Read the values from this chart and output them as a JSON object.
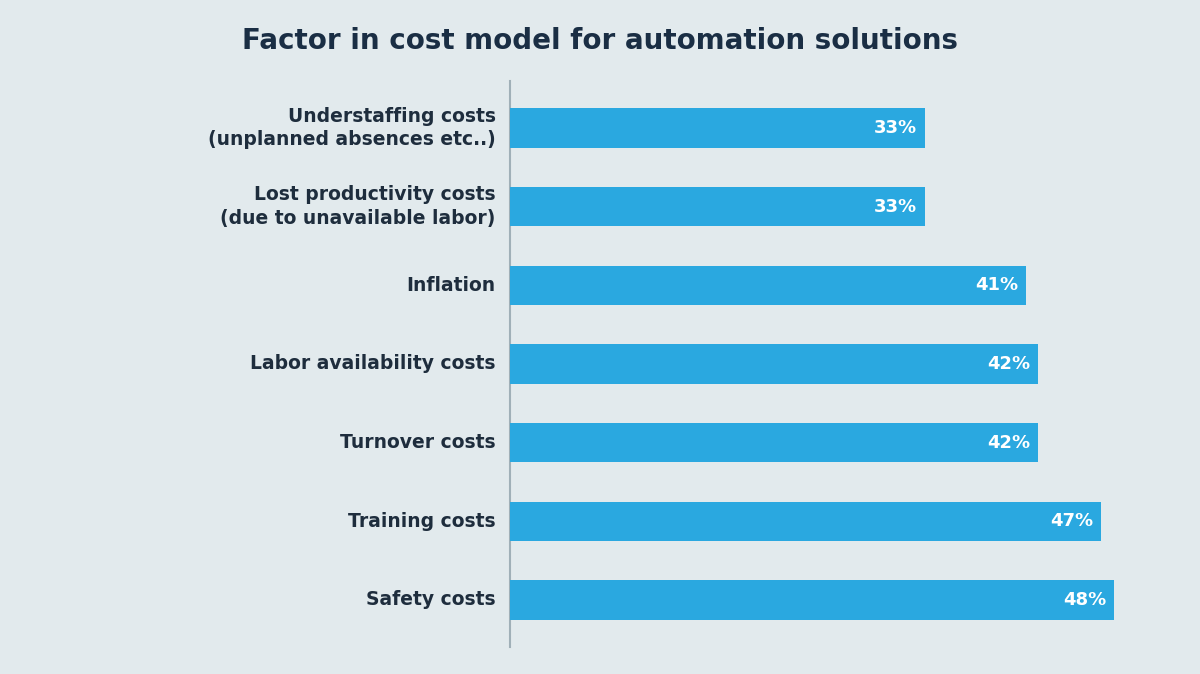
{
  "title": "Factor in cost model for automation solutions",
  "categories": [
    "Safety costs",
    "Training costs",
    "Turnover costs",
    "Labor availability costs",
    "Inflation",
    "Lost productivity costs\n(due to unavailable labor)",
    "Understaffing costs\n(unplanned absences etc..)"
  ],
  "values": [
    48,
    47,
    42,
    42,
    41,
    33,
    33
  ],
  "labels": [
    "48%",
    "47%",
    "42%",
    "42%",
    "41%",
    "33%",
    "33%"
  ],
  "bar_color": "#2aa8e0",
  "background_color": "#e2eaed",
  "title_color": "#1a2e44",
  "label_color": "#ffffff",
  "tick_label_color": "#1e2d3d",
  "divider_color": "#a0b0b8",
  "title_fontsize": 20,
  "tick_fontsize": 13.5,
  "label_fontsize": 13,
  "xlim": [
    0,
    52
  ]
}
